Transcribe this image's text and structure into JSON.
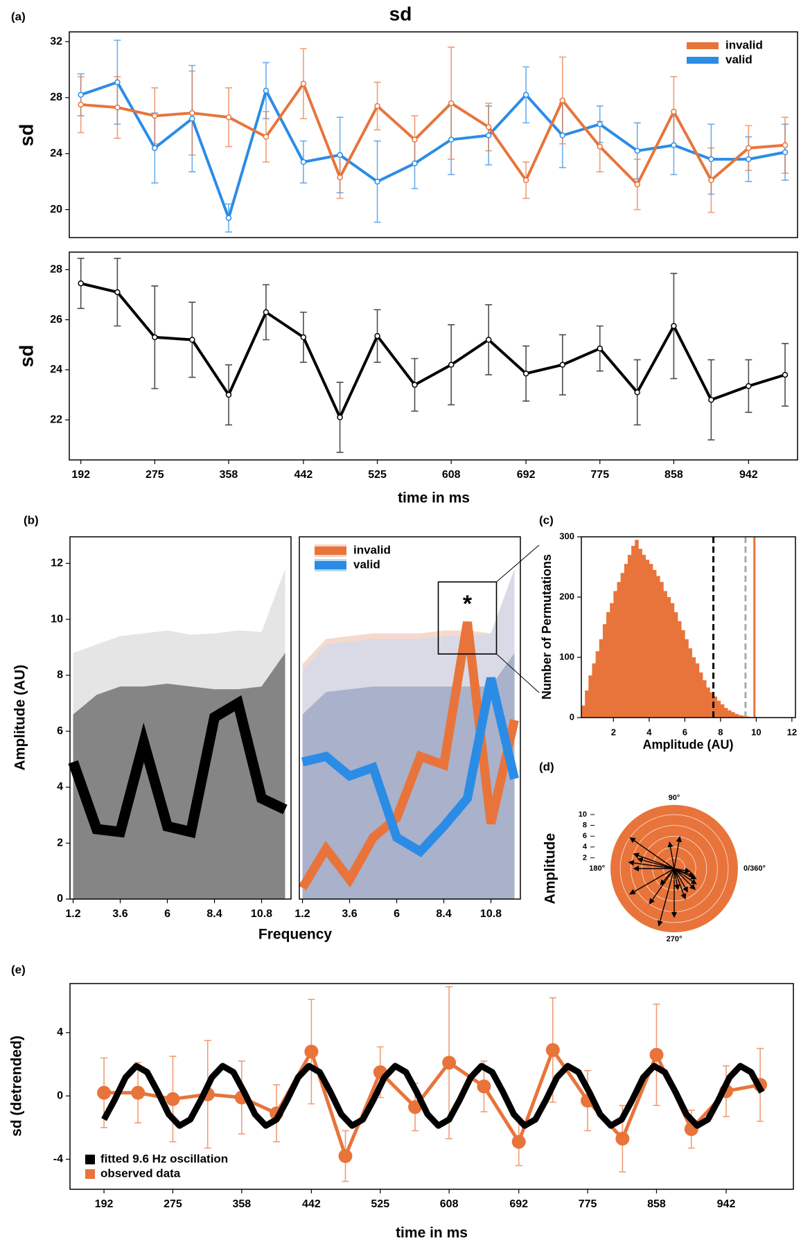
{
  "chart_data": [
    {
      "type": "line",
      "panel_label": "(a)",
      "title": "sd",
      "ylabel": "sd",
      "x": [
        192,
        233,
        275,
        317,
        358,
        400,
        442,
        483,
        525,
        567,
        608,
        650,
        692,
        733,
        775,
        817,
        858,
        900,
        942,
        983
      ],
      "series": [
        {
          "name": "invalid",
          "color": "#e8743b",
          "values": [
            27.5,
            27.3,
            26.7,
            26.9,
            26.6,
            25.2,
            29.0,
            22.3,
            27.4,
            25.0,
            27.6,
            25.9,
            22.1,
            27.8,
            24.5,
            21.8,
            27.0,
            22.1,
            24.4,
            24.6
          ],
          "errors": [
            2.0,
            2.2,
            2.0,
            3.0,
            2.1,
            1.8,
            2.5,
            1.5,
            1.7,
            1.7,
            4.0,
            1.7,
            1.3,
            3.1,
            1.8,
            1.8,
            2.5,
            2.3,
            1.6,
            2.0
          ]
        },
        {
          "name": "valid",
          "color": "#2b8ce6",
          "values": [
            28.2,
            29.1,
            24.4,
            26.5,
            19.4,
            28.5,
            23.4,
            23.9,
            22.0,
            23.3,
            25.0,
            25.3,
            28.2,
            25.3,
            26.1,
            24.2,
            24.6,
            23.6,
            23.6,
            24.1
          ],
          "errors": [
            1.5,
            3.0,
            2.5,
            3.8,
            1.0,
            2.0,
            1.5,
            2.7,
            2.9,
            1.8,
            2.5,
            2.1,
            2.0,
            2.3,
            1.3,
            2.0,
            2.1,
            2.5,
            1.6,
            2.0
          ]
        }
      ],
      "xlim": [
        179,
        997
      ],
      "ylim": [
        18,
        32.7
      ],
      "yticks": [
        20,
        24,
        28,
        32
      ],
      "legend": "upper right"
    },
    {
      "type": "line",
      "ylabel": "sd",
      "xlabel": "time in ms",
      "x": [
        192,
        233,
        275,
        317,
        358,
        400,
        442,
        483,
        525,
        567,
        608,
        650,
        692,
        733,
        775,
        817,
        858,
        900,
        942,
        983
      ],
      "series": [
        {
          "color": "#000000",
          "values": [
            27.45,
            27.1,
            25.3,
            25.2,
            23.0,
            26.3,
            25.3,
            22.1,
            25.35,
            23.4,
            24.2,
            25.2,
            23.85,
            24.2,
            24.85,
            23.1,
            25.75,
            22.8,
            23.35,
            23.8
          ],
          "errors": [
            1.0,
            1.35,
            2.05,
            1.5,
            1.2,
            1.1,
            1.0,
            1.4,
            1.05,
            1.05,
            1.6,
            1.4,
            1.1,
            1.2,
            0.9,
            1.3,
            2.1,
            1.6,
            1.05,
            1.25
          ]
        }
      ],
      "xlim": [
        179,
        997
      ],
      "ylim": [
        20.4,
        28.7
      ],
      "yticks": [
        22,
        24,
        26,
        28
      ],
      "xticks": [
        192,
        275,
        358,
        442,
        525,
        608,
        692,
        775,
        858,
        942
      ]
    },
    {
      "type": "spectrum",
      "panel_label": "(b)",
      "ylabel": "Amplitude (AU)",
      "xlabel": "Frequency",
      "x": [
        1.2,
        2.4,
        3.6,
        4.8,
        6,
        7.2,
        8.4,
        9.6,
        10.8,
        12
      ],
      "bands": [
        {
          "color": "#e2e2e2",
          "values": [
            8.8,
            9.1,
            9.4,
            9.5,
            9.6,
            9.45,
            9.5,
            9.6,
            9.55,
            11.8
          ]
        },
        {
          "color": "#7a7a7a",
          "values": [
            6.6,
            7.3,
            7.6,
            7.6,
            7.7,
            7.6,
            7.5,
            7.5,
            7.6,
            8.8
          ]
        }
      ],
      "series": [
        {
          "color": "#000000",
          "values": [
            4.9,
            2.5,
            2.4,
            5.6,
            2.6,
            2.4,
            6.5,
            7.0,
            3.6,
            3.2
          ]
        }
      ],
      "xlim": [
        1.04,
        12.3
      ],
      "ylim": [
        0,
        12.95
      ],
      "yticks": [
        0,
        2,
        4,
        6,
        8,
        10,
        12
      ],
      "xticks": [
        1.2,
        3.6,
        6,
        8.4,
        10.8
      ]
    },
    {
      "type": "spectrum",
      "x": [
        1.2,
        2.4,
        3.6,
        4.8,
        6,
        7.2,
        8.4,
        9.6,
        10.8,
        12
      ],
      "bands": [
        {
          "color": "#f4d5c6",
          "values": [
            8.4,
            9.3,
            9.4,
            9.5,
            9.5,
            9.5,
            9.6,
            9.6,
            9.5,
            11.8
          ]
        },
        {
          "color": "#d6d9e8",
          "values": [
            8.2,
            9.1,
            9.2,
            9.3,
            9.3,
            9.3,
            9.4,
            9.4,
            9.5,
            11.8
          ]
        },
        {
          "color": "#a3acc8",
          "values": [
            6.6,
            7.4,
            7.5,
            7.6,
            7.6,
            7.6,
            7.6,
            7.6,
            7.6,
            8.8
          ]
        }
      ],
      "series": [
        {
          "name": "invalid",
          "color": "#e8743b",
          "values": [
            0.4,
            1.8,
            0.7,
            2.2,
            2.9,
            5.1,
            4.8,
            9.9,
            2.7,
            6.4
          ]
        },
        {
          "name": "valid",
          "color": "#2b8ce6",
          "values": [
            4.9,
            5.1,
            4.4,
            4.7,
            2.2,
            1.7,
            2.6,
            3.6,
            7.9,
            4.3
          ]
        }
      ],
      "annotation": "*",
      "xlim": [
        1.04,
        12.3
      ],
      "ylim": [
        0,
        12.95
      ],
      "xticks": [
        1.2,
        3.6,
        6,
        8.4,
        10.8
      ],
      "legend": "upper left"
    },
    {
      "type": "histogram",
      "panel_label": "(c)",
      "xlabel": "Amplitude (AU)",
      "ylabel": "Number of Permutations",
      "color": "#e8743b",
      "bins": [
        0.2,
        0.4,
        0.6,
        0.8,
        1,
        1.2,
        1.4,
        1.6,
        1.8,
        2,
        2.2,
        2.4,
        2.6,
        2.8,
        3,
        3.2,
        3.4,
        3.6,
        3.8,
        4,
        4.2,
        4.4,
        4.6,
        4.8,
        5,
        5.2,
        5.4,
        5.6,
        5.8,
        6,
        6.2,
        6.4,
        6.6,
        6.8,
        7,
        7.2,
        7.4,
        7.6,
        7.8,
        8,
        8.2,
        8.4,
        8.6,
        8.8,
        9,
        9.2,
        9.4,
        9.6,
        9.8,
        10,
        10.2
      ],
      "counts": [
        20,
        45,
        70,
        90,
        110,
        130,
        155,
        175,
        190,
        210,
        225,
        240,
        255,
        270,
        285,
        295,
        280,
        270,
        262,
        255,
        245,
        235,
        225,
        210,
        200,
        190,
        175,
        160,
        145,
        130,
        115,
        100,
        90,
        75,
        62,
        50,
        42,
        35,
        28,
        22,
        16,
        12,
        9,
        6,
        4,
        3,
        2,
        1,
        1,
        1
      ],
      "vlines": [
        {
          "value": 7.6,
          "color": "#000000",
          "dashed": true
        },
        {
          "value": 9.4,
          "color": "#aaaaaa",
          "dashed": true
        },
        {
          "value": 9.9,
          "color": "#e8743b",
          "dashed": false
        }
      ],
      "xlim": [
        0.2,
        12.2
      ],
      "ylim": [
        0,
        300
      ],
      "xticks": [
        2,
        4,
        6,
        8,
        10,
        12
      ],
      "yticks": [
        0,
        100,
        200,
        300
      ]
    },
    {
      "type": "polar",
      "panel_label": "(d)",
      "ylabel": "Amplitude",
      "color": "#e8743b",
      "rlim": [
        0,
        11.8
      ],
      "rticks": [
        2,
        4,
        6,
        8,
        10
      ],
      "angle_ticks": [
        {
          "value": 0,
          "label": "0/360°"
        },
        {
          "value": 90,
          "label": "90°"
        },
        {
          "value": 180,
          "label": "180°"
        },
        {
          "value": 270,
          "label": "270°"
        }
      ],
      "theta": [
        145,
        160,
        172,
        180,
        165,
        210,
        235,
        255,
        270,
        100,
        80,
        290,
        300,
        315,
        325,
        335,
        340,
        350,
        280,
        230
      ],
      "r": [
        10,
        8,
        8.5,
        7.5,
        7,
        9.5,
        8,
        11,
        9,
        5,
        6,
        6,
        5,
        5.5,
        5,
        4.5,
        4,
        3,
        4,
        4
      ]
    },
    {
      "type": "line",
      "panel_label": "(e)",
      "ylabel": "sd (detrended)",
      "xlabel": "time in ms",
      "x": [
        192,
        233,
        275,
        317,
        358,
        400,
        442,
        483,
        525,
        567,
        608,
        650,
        692,
        733,
        775,
        817,
        858,
        900,
        942,
        983
      ],
      "series": [
        {
          "name": "fitted 9.6 Hz oscillation",
          "color": "#000000",
          "x": [
            192,
            205,
            218,
            231,
            244,
            257,
            270,
            283,
            296,
            309,
            322,
            335,
            348,
            361,
            374,
            387,
            400,
            413,
            426,
            439,
            452,
            465,
            478,
            491,
            504,
            517,
            530,
            543,
            556,
            569,
            582,
            595,
            608,
            621,
            634,
            647,
            660,
            673,
            686,
            699,
            712,
            725,
            738,
            751,
            764,
            777,
            790,
            803,
            816,
            829,
            842,
            855,
            868,
            881,
            894,
            907,
            920,
            933,
            946,
            959,
            972,
            985
          ],
          "values": [
            -1.49,
            -0.23,
            1.17,
            1.89,
            1.5,
            0.24,
            -1.16,
            -1.88,
            -1.49,
            -0.23,
            1.17,
            1.89,
            1.5,
            0.24,
            -1.16,
            -1.88,
            -1.49,
            -0.23,
            1.17,
            1.89,
            1.5,
            0.24,
            -1.16,
            -1.88,
            -1.49,
            -0.23,
            1.17,
            1.89,
            1.5,
            0.24,
            -1.16,
            -1.88,
            -1.49,
            -0.23,
            1.17,
            1.89,
            1.5,
            0.24,
            -1.16,
            -1.88,
            -1.49,
            -0.23,
            1.17,
            1.89,
            1.5,
            0.24,
            -1.16,
            -1.88,
            -1.49,
            -0.23,
            1.17,
            1.89,
            1.5,
            0.24,
            -1.16,
            -1.88,
            -1.49,
            -0.23,
            1.17,
            1.89,
            1.5,
            0.24
          ]
        },
        {
          "name": "observed data",
          "color": "#e8743b",
          "values": [
            0.2,
            0.2,
            -0.2,
            0.1,
            -0.1,
            -1.1,
            2.8,
            -3.8,
            1.5,
            -0.7,
            2.1,
            0.6,
            -2.9,
            2.9,
            -0.3,
            -2.7,
            2.6,
            -2.1,
            0.3,
            0.7
          ],
          "errors": [
            2.2,
            1.9,
            2.7,
            3.4,
            2.3,
            1.8,
            3.3,
            1.6,
            1.6,
            1.5,
            4.8,
            1.6,
            1.5,
            3.3,
            1.9,
            2.1,
            3.2,
            1.2,
            1.6,
            2.3
          ]
        }
      ],
      "xlim": [
        151,
        1023
      ],
      "ylim": [
        -5.9,
        7.1
      ],
      "yticks": [
        -4,
        0,
        4
      ],
      "xticks": [
        192,
        275,
        358,
        442,
        525,
        608,
        692,
        775,
        858,
        942
      ],
      "legend": "lower left"
    }
  ]
}
